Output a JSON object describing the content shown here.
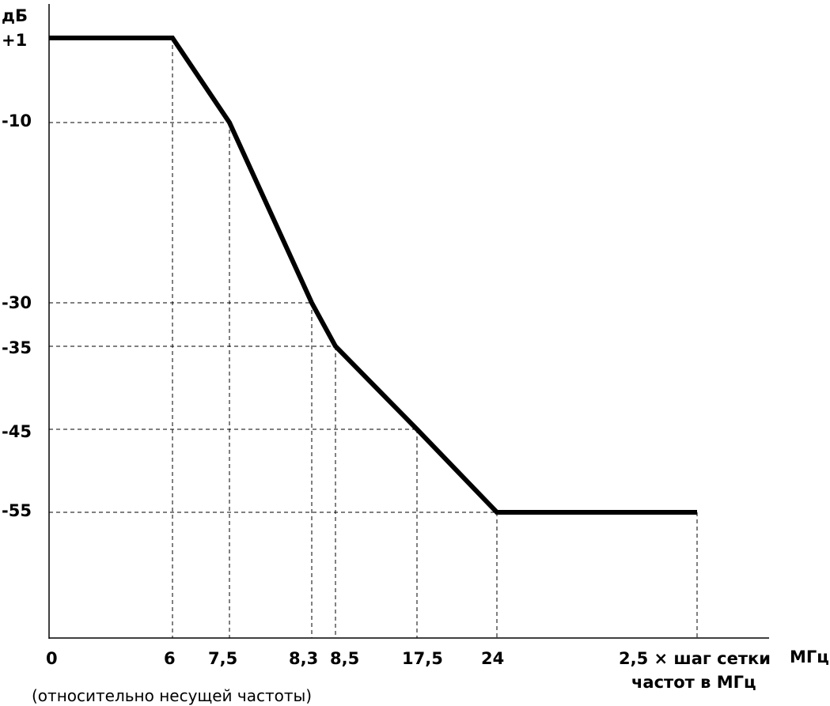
{
  "chart_data": {
    "type": "line",
    "y_unit": "дБ",
    "x_unit": "МГц",
    "x_note": "(относительно несущей частоты)",
    "x_tick_labels": [
      "0",
      "6",
      "7,5",
      "8,3",
      "8,5",
      "17,5",
      "24"
    ],
    "x_last_label": [
      "2,5 × шаг сетки",
      "частот в МГц"
    ],
    "y_tick_labels": [
      "+1",
      "-10",
      "-30",
      "-35",
      "-45",
      "-55"
    ],
    "points": [
      {
        "x": "0",
        "y": 1
      },
      {
        "x": "6",
        "y": 1
      },
      {
        "x": "7,5",
        "y": -10
      },
      {
        "x": "8,3",
        "y": -30
      },
      {
        "x": "8,5",
        "y": -35
      },
      {
        "x": "17,5",
        "y": -45
      },
      {
        "x": "24",
        "y": -55
      },
      {
        "x": "2,5 × шаг сетки частот в МГц",
        "y": -55
      }
    ],
    "grid": "dashed guide lines"
  }
}
